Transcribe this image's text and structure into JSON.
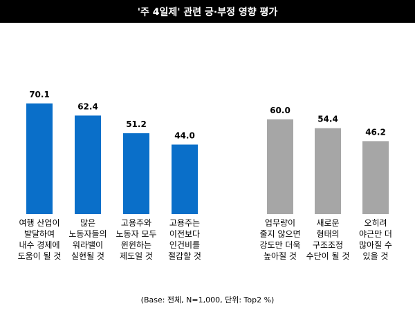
{
  "chart_data": {
    "type": "bar",
    "title": "'주 4일제' 관련 긍·부정 영향 평가",
    "footnote": "(Base: 전체, N=1,000, 단위: Top2 %)",
    "ylim": [
      0,
      100
    ],
    "grid": false,
    "groups": [
      {
        "color": "#0a6fc9",
        "bars": [
          {
            "value": 70.1,
            "value_label": "70.1",
            "label_lines": [
              "여행 산업이",
              "발달하여",
              "내수 경제에",
              "도움이 될 것"
            ]
          },
          {
            "value": 62.4,
            "value_label": "62.4",
            "label_lines": [
              "많은",
              "노동자들의",
              "워라밸이",
              "실현될 것"
            ]
          },
          {
            "value": 51.2,
            "value_label": "51.2",
            "label_lines": [
              "고용주와",
              "노동자 모두",
              "윈윈하는",
              "제도일 것"
            ]
          },
          {
            "value": 44.0,
            "value_label": "44.0",
            "label_lines": [
              "고용주는",
              "이전보다",
              "인건비를",
              "절감할 것"
            ]
          }
        ]
      },
      {
        "color": "#a6a6a6",
        "bars": [
          {
            "value": 60.0,
            "value_label": "60.0",
            "label_lines": [
              "업무량이",
              "줄지 않으면",
              "강도만 더욱",
              "높아질 것"
            ]
          },
          {
            "value": 54.4,
            "value_label": "54.4",
            "label_lines": [
              "새로운",
              "형태의",
              "구조조정",
              "수단이 될 것"
            ]
          },
          {
            "value": 46.2,
            "value_label": "46.2",
            "label_lines": [
              "오히려",
              "야근만 더",
              "많아질 수",
              "있을 것"
            ]
          }
        ]
      }
    ]
  }
}
